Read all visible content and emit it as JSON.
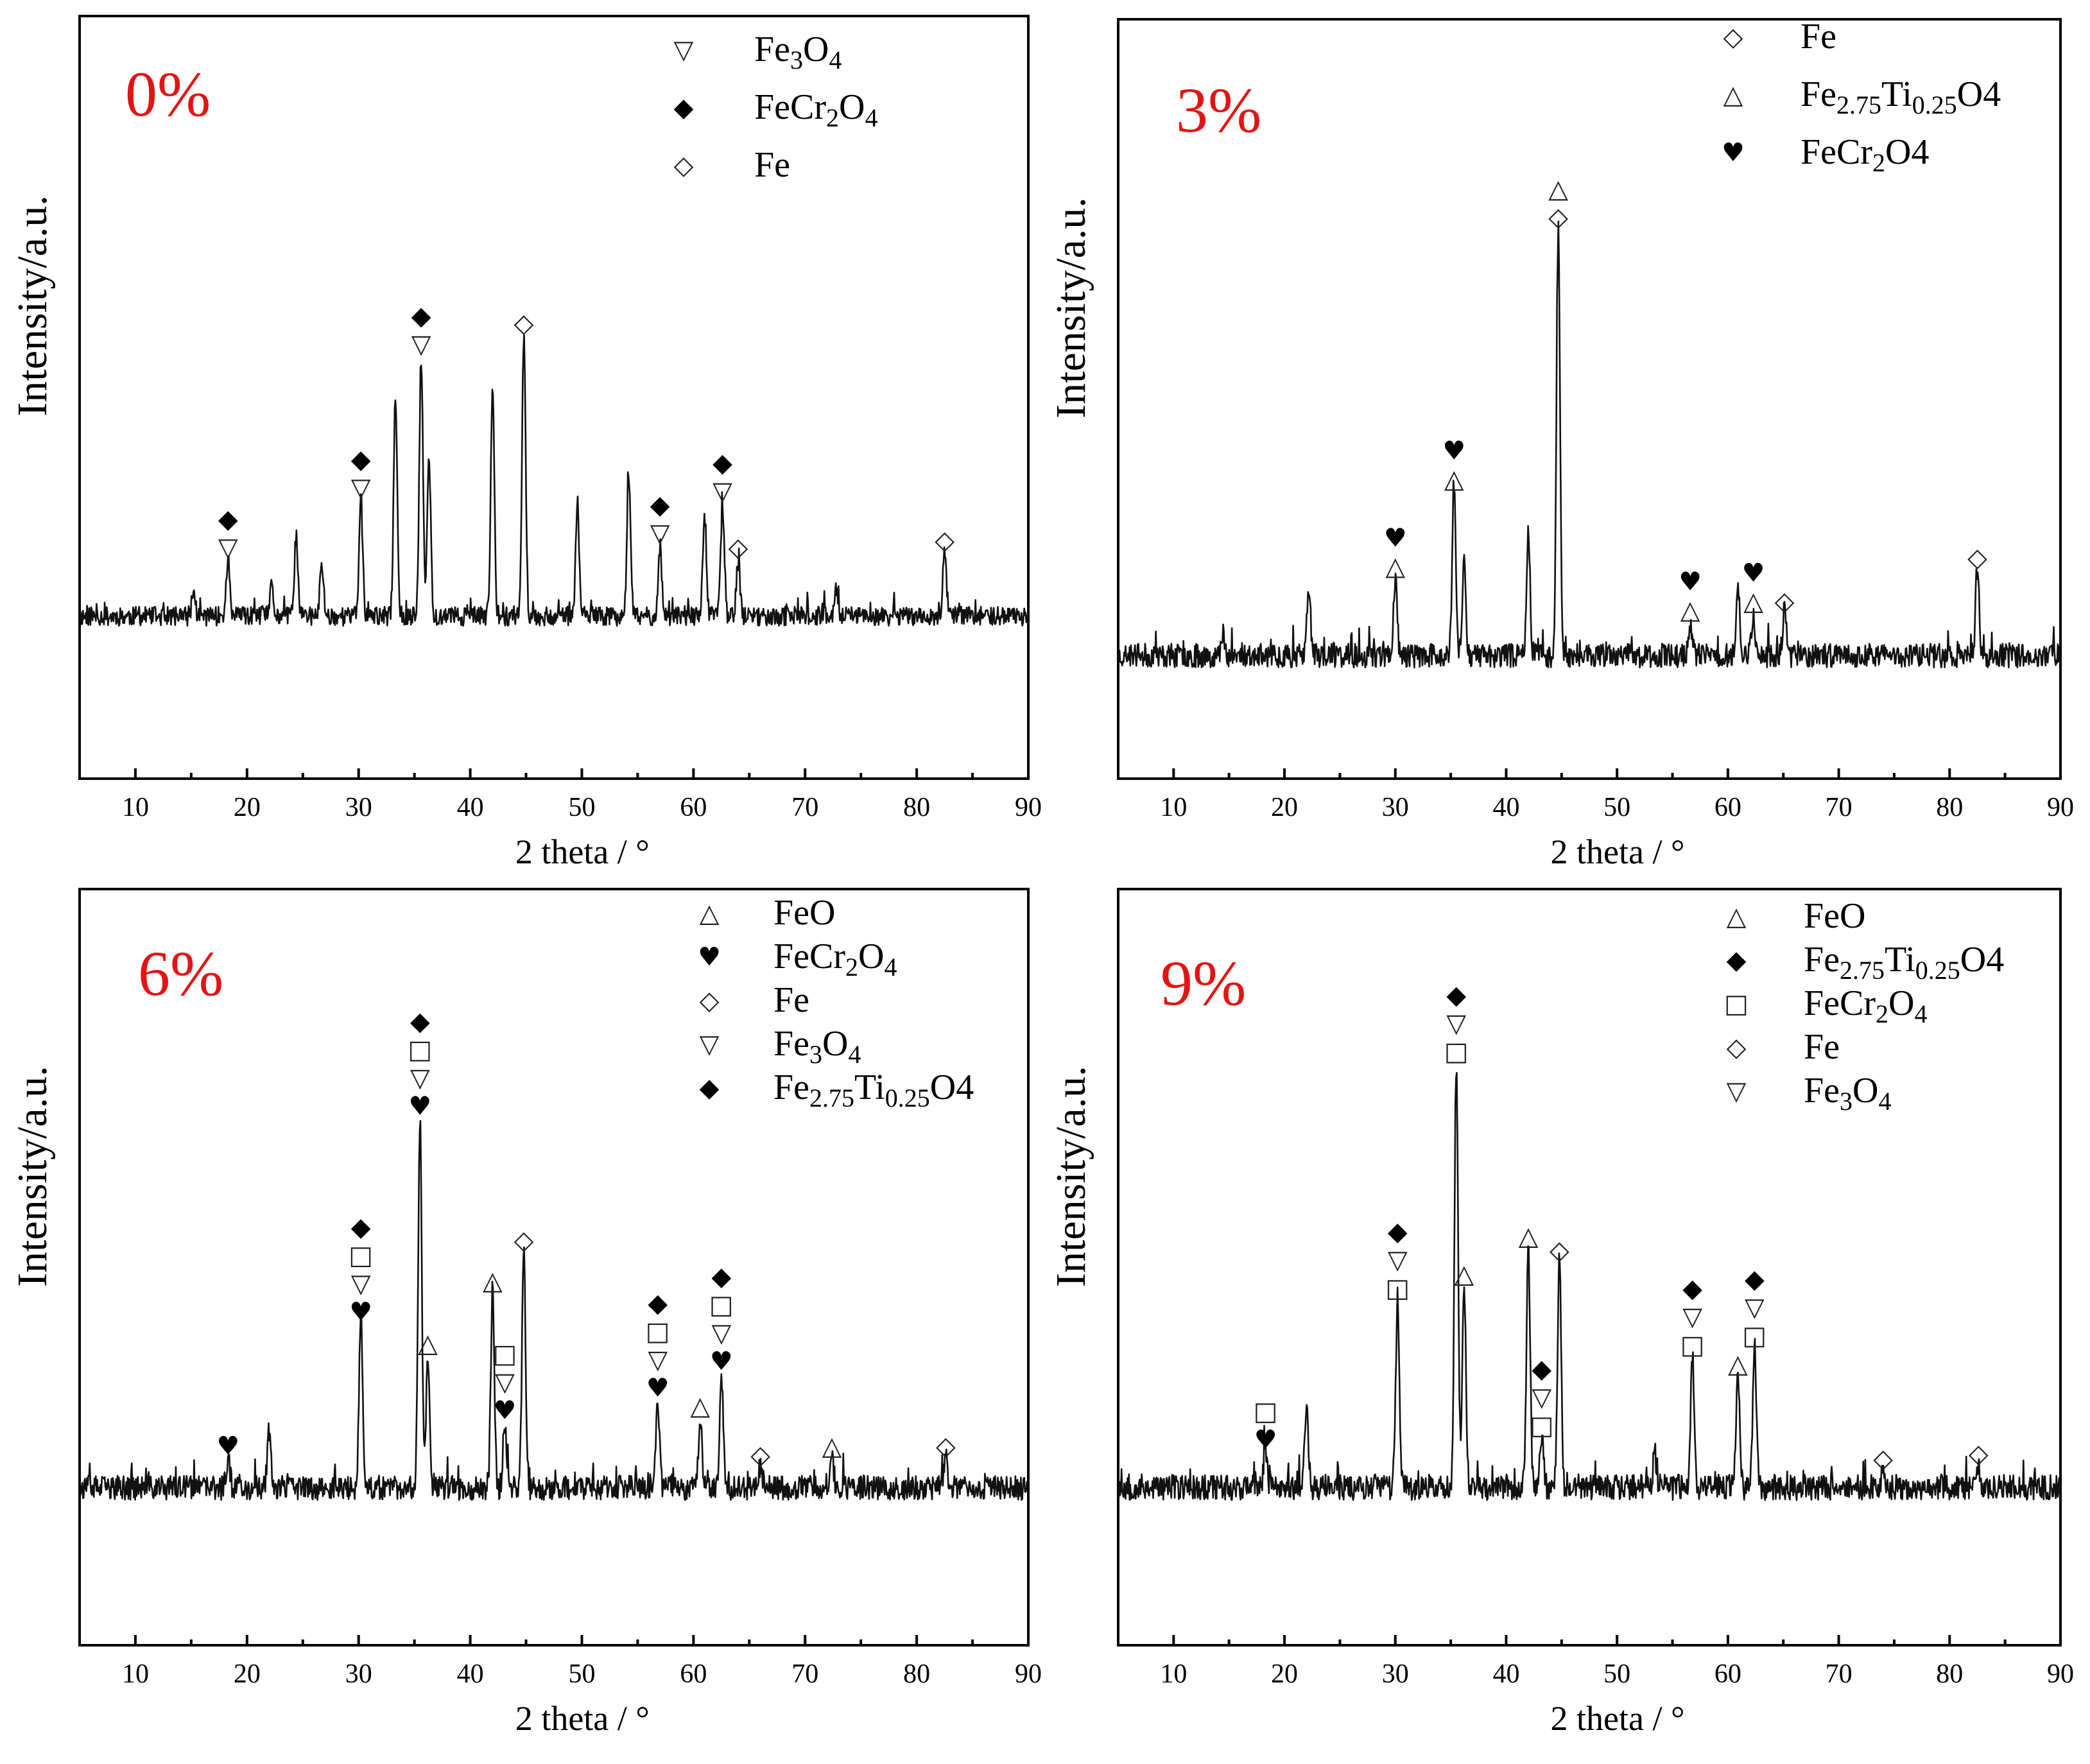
{
  "chart_data": [
    {
      "type": "line",
      "label": "0%",
      "xlabel": "2 theta / °",
      "ylabel": "Intensity/a.u.",
      "xlim": [
        5,
        90
      ],
      "xticks": [
        10,
        20,
        30,
        40,
        50,
        60,
        70,
        80,
        90
      ],
      "noise_seed": 11,
      "peaks": [
        {
          "x": 15.2,
          "h": 0.07
        },
        {
          "x": 18.3,
          "h": 0.16
        },
        {
          "x": 22.2,
          "h": 0.08
        },
        {
          "x": 24.4,
          "h": 0.23
        },
        {
          "x": 26.7,
          "h": 0.15
        },
        {
          "x": 30.2,
          "h": 0.33
        },
        {
          "x": 33.3,
          "h": 0.64
        },
        {
          "x": 35.6,
          "h": 0.74
        },
        {
          "x": 36.3,
          "h": 0.45
        },
        {
          "x": 42.0,
          "h": 0.65
        },
        {
          "x": 44.8,
          "h": 0.8
        },
        {
          "x": 49.6,
          "h": 0.31
        },
        {
          "x": 54.2,
          "h": 0.4
        },
        {
          "x": 57.0,
          "h": 0.2
        },
        {
          "x": 61.0,
          "h": 0.27
        },
        {
          "x": 62.6,
          "h": 0.32
        },
        {
          "x": 64.0,
          "h": 0.16
        },
        {
          "x": 72.8,
          "h": 0.08
        },
        {
          "x": 82.5,
          "h": 0.18
        }
      ],
      "legend": [
        {
          "symbol": "▽",
          "text": "Fe",
          "sub": "3",
          "rest": "O",
          "sub2": "4",
          "tail": ""
        },
        {
          "symbol": "◆",
          "text": "FeCr",
          "sub": "2",
          "rest": "O",
          "sub2": "4",
          "tail": ""
        },
        {
          "symbol": "◇",
          "text": "Fe",
          "sub": "",
          "rest": "",
          "sub2": "",
          "tail": ""
        }
      ],
      "annotations": [
        {
          "x": 18.3,
          "h": 0.16,
          "symbols": [
            "◆",
            "▽"
          ]
        },
        {
          "x": 30.2,
          "h": 0.33,
          "symbols": [
            "◆",
            "▽"
          ]
        },
        {
          "x": 35.6,
          "h": 0.74,
          "symbols": [
            "◆",
            "▽"
          ]
        },
        {
          "x": 44.8,
          "h": 0.8,
          "symbols": [
            "◇"
          ]
        },
        {
          "x": 57.0,
          "h": 0.2,
          "symbols": [
            "◆",
            "▽"
          ]
        },
        {
          "x": 62.6,
          "h": 0.32,
          "symbols": [
            "◆",
            "▽"
          ]
        },
        {
          "x": 64.0,
          "h": 0.16,
          "symbols": [
            "◇"
          ]
        },
        {
          "x": 82.5,
          "h": 0.18,
          "symbols": [
            "◇"
          ]
        }
      ]
    },
    {
      "type": "line",
      "label": "3%",
      "xlabel": "2 theta / °",
      "ylabel": "Intensity/a.u.",
      "xlim": [
        5,
        90
      ],
      "xticks": [
        10,
        20,
        30,
        40,
        50,
        60,
        70,
        80,
        90
      ],
      "noise_seed": 23,
      "peaks": [
        {
          "x": 14.5,
          "h": 0.05
        },
        {
          "x": 22.2,
          "h": 0.16
        },
        {
          "x": 30.0,
          "h": 0.18
        },
        {
          "x": 35.3,
          "h": 0.38
        },
        {
          "x": 36.2,
          "h": 0.22
        },
        {
          "x": 42.0,
          "h": 0.29
        },
        {
          "x": 44.7,
          "h": 0.98
        },
        {
          "x": 56.6,
          "h": 0.08
        },
        {
          "x": 60.9,
          "h": 0.17
        },
        {
          "x": 62.3,
          "h": 0.1
        },
        {
          "x": 65.1,
          "h": 0.1
        },
        {
          "x": 82.5,
          "h": 0.2
        }
      ],
      "legend": [
        {
          "symbol": "◇",
          "text": "Fe",
          "sub": "",
          "rest": "",
          "sub2": "",
          "tail": ""
        },
        {
          "symbol": "△",
          "text": "Fe",
          "sub": "2.75",
          "rest": "Ti",
          "sub2": "0.25",
          "tail": "O4"
        },
        {
          "symbol": "♥",
          "text": "FeCr",
          "sub": "2",
          "rest": "O4",
          "sub2": "",
          "tail": ""
        }
      ],
      "annotations": [
        {
          "x": 30.0,
          "h": 0.18,
          "symbols": [
            "♥",
            "△"
          ]
        },
        {
          "x": 35.3,
          "h": 0.38,
          "symbols": [
            "♥",
            "△"
          ]
        },
        {
          "x": 44.7,
          "h": 0.98,
          "symbols": [
            "△",
            "◇"
          ]
        },
        {
          "x": 56.6,
          "h": 0.08,
          "symbols": [
            "♥",
            "△"
          ]
        },
        {
          "x": 62.3,
          "h": 0.1,
          "symbols": [
            "♥",
            "△"
          ]
        },
        {
          "x": 65.1,
          "h": 0.1,
          "symbols": [
            "◇"
          ]
        },
        {
          "x": 82.5,
          "h": 0.2,
          "symbols": [
            "◇"
          ]
        }
      ]
    },
    {
      "type": "line",
      "label": "6%",
      "xlabel": "2 theta / °",
      "ylabel": "Intensity/a.u.",
      "xlim": [
        5,
        90
      ],
      "xticks": [
        10,
        20,
        30,
        40,
        50,
        60,
        70,
        80,
        90
      ],
      "noise_seed": 37,
      "peaks": [
        {
          "x": 18.3,
          "h": 0.07
        },
        {
          "x": 22.0,
          "h": 0.13
        },
        {
          "x": 30.2,
          "h": 0.37
        },
        {
          "x": 35.5,
          "h": 0.83
        },
        {
          "x": 36.2,
          "h": 0.3
        },
        {
          "x": 42.0,
          "h": 0.44
        },
        {
          "x": 43.1,
          "h": 0.15
        },
        {
          "x": 44.8,
          "h": 0.53
        },
        {
          "x": 56.8,
          "h": 0.2
        },
        {
          "x": 60.6,
          "h": 0.16
        },
        {
          "x": 62.5,
          "h": 0.26
        },
        {
          "x": 66.0,
          "h": 0.05
        },
        {
          "x": 72.4,
          "h": 0.07
        },
        {
          "x": 82.6,
          "h": 0.07
        }
      ],
      "legend": [
        {
          "symbol": "△",
          "text": "FeO",
          "sub": "",
          "rest": "",
          "sub2": "",
          "tail": ""
        },
        {
          "symbol": "♥",
          "text": "FeCr",
          "sub": "2",
          "rest": "O",
          "sub2": "4",
          "tail": ""
        },
        {
          "symbol": "◇",
          "text": "Fe",
          "sub": "",
          "rest": "",
          "sub2": "",
          "tail": ""
        },
        {
          "symbol": "▽",
          "text": "Fe",
          "sub": "3",
          "rest": "O",
          "sub2": "4",
          "tail": ""
        },
        {
          "symbol": "◆",
          "text": "Fe",
          "sub": "2.75",
          "rest": "Ti",
          "sub2": "0.25",
          "tail": "O4"
        }
      ],
      "annotations": [
        {
          "x": 18.3,
          "h": 0.07,
          "symbols": [
            "♥"
          ]
        },
        {
          "x": 30.2,
          "h": 0.37,
          "symbols": [
            "◆",
            "□",
            "▽",
            "♥"
          ]
        },
        {
          "x": 35.5,
          "h": 0.83,
          "symbols": [
            "◆",
            "□",
            "▽",
            "♥"
          ]
        },
        {
          "x": 36.2,
          "h": 0.3,
          "symbols": [
            "△"
          ]
        },
        {
          "x": 42.0,
          "h": 0.44,
          "symbols": [
            "△"
          ]
        },
        {
          "x": 43.1,
          "h": 0.15,
          "symbols": [
            "□",
            "▽",
            "♥"
          ]
        },
        {
          "x": 44.8,
          "h": 0.53,
          "symbols": [
            "◇"
          ]
        },
        {
          "x": 56.8,
          "h": 0.2,
          "symbols": [
            "◆",
            "□",
            "▽",
            "♥"
          ]
        },
        {
          "x": 60.6,
          "h": 0.16,
          "symbols": [
            "△"
          ]
        },
        {
          "x": 62.5,
          "h": 0.26,
          "symbols": [
            "◆",
            "□",
            "▽",
            "♥"
          ]
        },
        {
          "x": 66.0,
          "h": 0.05,
          "symbols": [
            "◇"
          ]
        },
        {
          "x": 72.4,
          "h": 0.07,
          "symbols": [
            "△"
          ]
        },
        {
          "x": 82.6,
          "h": 0.07,
          "symbols": [
            "◇"
          ]
        }
      ]
    },
    {
      "type": "line",
      "label": "9%",
      "xlabel": "2 theta / °",
      "ylabel": "Intensity/a.u.",
      "xlim": [
        5,
        90
      ],
      "xticks": [
        10,
        20,
        30,
        40,
        50,
        60,
        70,
        80,
        90
      ],
      "noise_seed": 53,
      "peaks": [
        {
          "x": 18.3,
          "h": 0.08
        },
        {
          "x": 22.0,
          "h": 0.18
        },
        {
          "x": 30.2,
          "h": 0.4
        },
        {
          "x": 35.5,
          "h": 0.9
        },
        {
          "x": 36.2,
          "h": 0.43
        },
        {
          "x": 42.0,
          "h": 0.51
        },
        {
          "x": 43.2,
          "h": 0.11
        },
        {
          "x": 44.8,
          "h": 0.48
        },
        {
          "x": 53.4,
          "h": 0.07
        },
        {
          "x": 56.8,
          "h": 0.28
        },
        {
          "x": 60.9,
          "h": 0.24
        },
        {
          "x": 62.4,
          "h": 0.3
        },
        {
          "x": 74.0,
          "h": 0.04
        },
        {
          "x": 82.6,
          "h": 0.05
        }
      ],
      "legend": [
        {
          "symbol": "△",
          "text": "FeO",
          "sub": "",
          "rest": "",
          "sub2": "",
          "tail": ""
        },
        {
          "symbol": "◆",
          "text": "Fe",
          "sub": "2.75",
          "rest": "Ti",
          "sub2": "0.25",
          "tail": "O4"
        },
        {
          "symbol": "□",
          "text": "FeCr",
          "sub": "2",
          "rest": "O",
          "sub2": "4",
          "tail": ""
        },
        {
          "symbol": "◇",
          "text": "Fe",
          "sub": "",
          "rest": "",
          "sub2": "",
          "tail": ""
        },
        {
          "symbol": "▽",
          "text": "Fe",
          "sub": "3",
          "rest": "O",
          "sub2": "4",
          "tail": ""
        }
      ],
      "annotations": [
        {
          "x": 18.3,
          "h": 0.08,
          "symbols": [
            "□",
            "♥"
          ]
        },
        {
          "x": 30.2,
          "h": 0.4,
          "symbols": [
            "◆",
            "▽",
            "□"
          ]
        },
        {
          "x": 35.5,
          "h": 0.9,
          "symbols": [
            "◆",
            "▽",
            "□"
          ]
        },
        {
          "x": 36.2,
          "h": 0.43,
          "symbols": [
            "△"
          ]
        },
        {
          "x": 42.0,
          "h": 0.51,
          "symbols": [
            "△"
          ]
        },
        {
          "x": 43.2,
          "h": 0.11,
          "symbols": [
            "◆",
            "▽",
            "□"
          ]
        },
        {
          "x": 44.8,
          "h": 0.48,
          "symbols": [
            "◇"
          ]
        },
        {
          "x": 56.8,
          "h": 0.28,
          "symbols": [
            "◆",
            "▽",
            "□"
          ]
        },
        {
          "x": 60.9,
          "h": 0.24,
          "symbols": [
            "△"
          ]
        },
        {
          "x": 62.4,
          "h": 0.3,
          "symbols": [
            "◆",
            "▽",
            "□"
          ]
        },
        {
          "x": 74.0,
          "h": 0.04,
          "symbols": [
            "◇"
          ]
        },
        {
          "x": 82.6,
          "h": 0.05,
          "symbols": [
            "◇"
          ]
        }
      ]
    }
  ]
}
